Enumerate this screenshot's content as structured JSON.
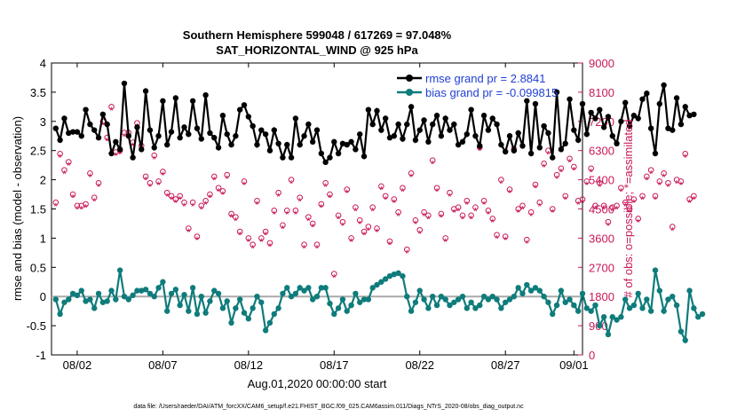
{
  "chart_data": {
    "type": "line",
    "title_line1": "Southern Hemisphere 599048 / 617269 = 97.048%",
    "title_line2": "SAT_HORIZONTAL_WIND @ 925 hPa",
    "xlabel": "Aug.01,2020 00:00:00 start",
    "ylabel_left": "rmse and bias (model - observation)",
    "ylabel_right": "# of obs: o=possible; *=assimilated",
    "footer": "data file: /Users/raeder/DAI/ATM_forcXX/CAM6_setup/f.e21.FHIST_BGC.f09_025.CAM6assim.011/Diags_NTrS_2020-08/obs_diag_output.nc",
    "xlim": [
      0.5,
      31.5
    ],
    "ylim_left": [
      -1,
      4
    ],
    "ylim_right": [
      0,
      9000
    ],
    "x_ticks": [
      2,
      7,
      12,
      17,
      22,
      27,
      31
    ],
    "x_tick_labels": [
      "08/02",
      "08/07",
      "08/12",
      "08/17",
      "08/22",
      "08/27",
      "09/01"
    ],
    "y_left_ticks": [
      -1,
      -0.5,
      0,
      0.5,
      1,
      1.5,
      2,
      2.5,
      3,
      3.5,
      4
    ],
    "y_left_tick_labels": [
      "-1",
      "-0.5",
      "0",
      "0.5",
      "1",
      "1.5",
      "2",
      "2.5",
      "3",
      "3.5",
      "4"
    ],
    "y_right_ticks": [
      0,
      900,
      1800,
      2700,
      3600,
      4500,
      5400,
      6300,
      7200,
      8100,
      9000
    ],
    "y_right_tick_labels": [
      "0",
      "900",
      "1800",
      "2700",
      "3600",
      "4500",
      "5400",
      "6300",
      "7200",
      "8100",
      "9000"
    ],
    "legend": [
      {
        "label": "rmse grand pr = 2.8841",
        "color": "#000000"
      },
      {
        "label": "bias grand pr = -0.099815",
        "color": "#0e7c7b"
      }
    ],
    "x_start": 0.75,
    "x_step": 0.25,
    "series": [
      {
        "name": "rmse",
        "color": "#000000",
        "values": [
          2.88,
          2.68,
          3.05,
          2.8,
          2.82,
          2.82,
          2.75,
          3.2,
          2.95,
          2.85,
          2.72,
          3.12,
          2.95,
          2.45,
          2.65,
          2.52,
          3.65,
          2.75,
          2.38,
          2.9,
          2.52,
          3.52,
          2.85,
          2.55,
          2.75,
          3.35,
          2.6,
          2.82,
          3.4,
          2.72,
          2.9,
          2.78,
          3.35,
          2.88,
          2.7,
          3.45,
          2.8,
          2.72,
          2.55,
          3.1,
          2.78,
          2.6,
          2.75,
          3.2,
          3.28,
          3.08,
          2.92,
          2.6,
          2.85,
          2.78,
          2.5,
          2.85,
          2.62,
          2.38,
          2.6,
          2.38,
          3.05,
          2.6,
          2.75,
          2.95,
          2.65,
          2.85,
          2.45,
          2.3,
          2.38,
          2.65,
          2.45,
          2.62,
          2.6,
          2.65,
          2.52,
          2.78,
          2.4,
          3.2,
          2.95,
          3.18,
          2.85,
          3.05,
          2.72,
          2.75,
          2.95,
          2.7,
          2.95,
          3.25,
          2.68,
          2.85,
          3.02,
          2.65,
          2.95,
          3.1,
          2.75,
          3.05,
          2.85,
          2.95,
          2.6,
          2.65,
          2.78,
          3.2,
          2.75,
          2.58,
          3.1,
          2.85,
          3.05,
          2.95,
          2.6,
          2.48,
          2.75,
          2.5,
          2.8,
          2.58,
          3.35,
          2.45,
          3.3,
          2.55,
          2.92,
          2.8,
          2.38,
          3.5,
          2.52,
          2.62,
          3.38,
          2.85,
          2.68,
          3.3,
          2.78,
          3.15,
          3.05,
          3.2,
          2.9,
          3.08,
          2.75,
          2.62,
          3.0,
          3.32,
          2.92,
          3.1,
          3.05,
          3.38,
          3.48,
          2.88,
          2.45,
          3.3,
          3.62,
          2.88,
          2.85,
          3.4,
          2.95,
          3.25,
          3.1,
          3.12
        ]
      },
      {
        "name": "bias",
        "color": "#0e7c7b",
        "values": [
          -0.05,
          -0.3,
          -0.1,
          -0.05,
          0.05,
          0.02,
          0.1,
          -0.08,
          -0.05,
          -0.2,
          0.05,
          -0.1,
          -0.08,
          0.1,
          -0.05,
          0.45,
          0.0,
          -0.05,
          0.02,
          0.1,
          0.1,
          0.12,
          0.05,
          0.0,
          0.15,
          0.25,
          -0.25,
          0.05,
          0.12,
          -0.15,
          0.03,
          -0.25,
          0.15,
          -0.3,
          0.0,
          -0.28,
          -0.08,
          0.1,
          0.05,
          -0.2,
          -0.08,
          -0.45,
          -0.2,
          -0.05,
          -0.28,
          -0.38,
          -0.2,
          0.0,
          -0.1,
          -0.58,
          -0.45,
          -0.3,
          -0.2,
          0.05,
          0.15,
          0.0,
          0.05,
          0.15,
          0.1,
          0.15,
          -0.05,
          0.0,
          0.15,
          0.15,
          -0.12,
          -0.3,
          -0.2,
          -0.05,
          -0.25,
          -0.15,
          0.05,
          -0.1,
          -0.05,
          -0.05,
          0.15,
          0.2,
          0.25,
          0.3,
          0.35,
          0.38,
          0.4,
          0.35,
          0.0,
          -0.25,
          -0.1,
          0.1,
          -0.05,
          -0.2,
          0.0,
          -0.15,
          0.0,
          -0.05,
          -0.15,
          -0.1,
          -0.05,
          0.0,
          -0.2,
          -0.1,
          -0.2,
          -0.15,
          0.0,
          -0.05,
          0.0,
          -0.05,
          -0.2,
          -0.1,
          -0.05,
          0.0,
          0.15,
          0.05,
          0.2,
          0.1,
          0.15,
          0.1,
          0.0,
          -0.1,
          -0.3,
          -0.15,
          0.1,
          -0.1,
          -0.05,
          -0.15,
          -0.25,
          0.05,
          -0.2,
          -0.25,
          -0.15,
          -0.5,
          -0.35,
          -0.65,
          -0.35,
          -0.4,
          -0.35,
          -0.05,
          -0.2,
          -0.15,
          0.05,
          -0.2,
          -0.05,
          -0.25,
          0.45,
          0.1,
          -0.25,
          -0.05,
          0.0,
          -0.15,
          -0.6,
          -0.75,
          0.1,
          -0.2,
          -0.35,
          -0.3
        ]
      },
      {
        "name": "possible obs",
        "color": "#c8185a",
        "marker": "circle",
        "values": [
          4700,
          6200,
          5700,
          5950,
          4950,
          4600,
          4600,
          4650,
          5600,
          4850,
          5300,
          7200,
          6700,
          7650,
          6250,
          6300,
          6850,
          6850,
          6550,
          7150,
          6450,
          5500,
          5300,
          6150,
          5350,
          5650,
          5000,
          4900,
          4800,
          4900,
          4700,
          3900,
          4700,
          3650,
          4600,
          4750,
          4950,
          5500,
          5150,
          5050,
          5550,
          4350,
          4250,
          3800,
          5350,
          3600,
          3400,
          4750,
          3600,
          3800,
          3450,
          4450,
          5000,
          4000,
          4450,
          5400,
          4450,
          4850,
          3400,
          4250,
          4050,
          3400,
          4650,
          5300,
          4950,
          2500,
          4300,
          4100,
          5100,
          3600,
          4550,
          4150,
          3800,
          3950,
          4550,
          3900,
          5200,
          4900,
          3500,
          4800,
          4400,
          5150,
          3250,
          5600,
          4150,
          3850,
          4400,
          4300,
          6000,
          5150,
          4350,
          3600,
          5000,
          4500,
          4550,
          4300,
          4750,
          4300,
          4550,
          6400,
          4750,
          4450,
          4200,
          3700,
          5400,
          3650,
          5100,
          6350,
          4500,
          4600,
          3550,
          4400,
          5250,
          4700,
          5900,
          6300,
          4500,
          5550,
          5750,
          4900,
          6050,
          5800,
          4750,
          4800,
          5350,
          5750,
          4600,
          5300,
          4600,
          4100,
          4550,
          4600,
          5150,
          4700,
          4500,
          4800,
          4200,
          4900,
          5500,
          5700,
          4900,
          5350,
          5600,
          5300,
          3950,
          5400,
          5350,
          6200,
          4800,
          4900
        ]
      },
      {
        "name": "assimilated obs",
        "color": "#c8185a",
        "marker": "asterisk",
        "values": [
          4600,
          6100,
          5600,
          5850,
          4850,
          4500,
          4500,
          4550,
          5500,
          4750,
          5200,
          7100,
          6600,
          7550,
          6150,
          6200,
          6750,
          6750,
          6450,
          7050,
          6350,
          5400,
          5200,
          6050,
          5250,
          5550,
          4900,
          4800,
          4700,
          4800,
          4600,
          3800,
          4600,
          3550,
          4500,
          4650,
          4850,
          5400,
          5050,
          4950,
          5450,
          4250,
          4150,
          3700,
          5250,
          3500,
          3300,
          4650,
          3500,
          3700,
          3350,
          4350,
          4900,
          3900,
          4350,
          5300,
          4350,
          4750,
          3300,
          4150,
          3950,
          3300,
          4550,
          5200,
          4850,
          2400,
          4200,
          4000,
          5000,
          3500,
          4450,
          4050,
          3700,
          3850,
          4450,
          3800,
          5100,
          4800,
          3400,
          4700,
          4300,
          5050,
          3150,
          5500,
          4050,
          3750,
          4300,
          4200,
          5900,
          5050,
          4250,
          3500,
          4900,
          4400,
          4450,
          4200,
          4650,
          4200,
          4450,
          6300,
          4650,
          4350,
          4100,
          3600,
          5300,
          3550,
          5000,
          6250,
          4400,
          4500,
          3450,
          4300,
          5150,
          4600,
          5800,
          6200,
          4400,
          5450,
          5650,
          4800,
          5950,
          5700,
          4650,
          4700,
          5250,
          5650,
          4500,
          5200,
          4500,
          4000,
          4450,
          4500,
          5050,
          4600,
          4400,
          4700,
          4100,
          4800,
          5400,
          5600,
          4800,
          5250,
          5500,
          5200,
          3850,
          5300,
          5250,
          6100,
          4700,
          4800
        ]
      }
    ]
  }
}
